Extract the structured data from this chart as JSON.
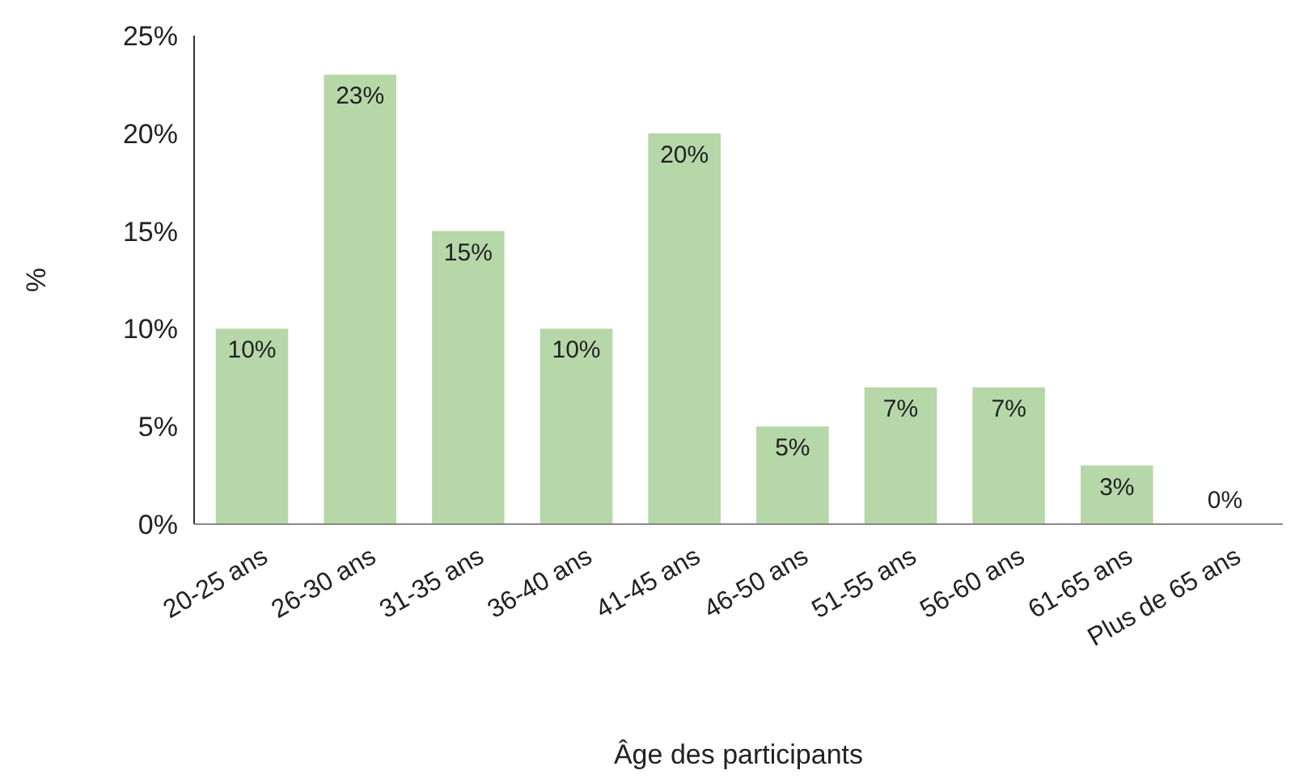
{
  "chart_data": {
    "type": "bar",
    "xlabel": "Âge des participants",
    "ylabel": "%",
    "categories": [
      "20-25 ans",
      "26-30 ans",
      "31-35 ans",
      "36-40 ans",
      "41-45 ans",
      "46-50 ans",
      "51-55 ans",
      "56-60 ans",
      "61-65 ans",
      "Plus de 65 ans"
    ],
    "values": [
      10,
      23,
      15,
      10,
      20,
      5,
      7,
      7,
      3,
      0
    ],
    "color": "#b6d7a8",
    "ylim": [
      0,
      25
    ],
    "yticks": [
      {
        "value": 0,
        "label": "0%"
      },
      {
        "value": 5,
        "label": "5%"
      },
      {
        "value": 10,
        "label": "10%"
      },
      {
        "value": 15,
        "label": "15%"
      },
      {
        "value": 20,
        "label": "20%"
      },
      {
        "value": 25,
        "label": "25%"
      }
    ],
    "value_labels": [
      "10%",
      "23%",
      "15%",
      "10%",
      "20%",
      "5%",
      "7%",
      "7%",
      "3%",
      "0%"
    ],
    "grid": false
  }
}
